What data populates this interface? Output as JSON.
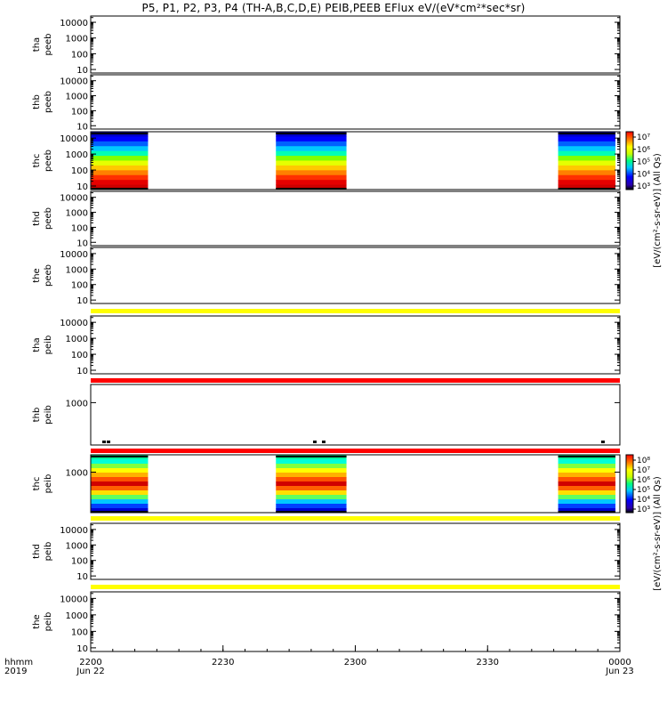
{
  "chart_data": {
    "type": "heatmap",
    "title": "P5, P1, P2, P3, P4 (TH-A,B,C,D,E) PEIB,PEEB EFlux eV/(eV*cm²*sec*sr)",
    "x_axis": {
      "range": [
        "2019-06-22T22:00",
        "2019-06-23T00:00"
      ],
      "ticks": [
        "2200",
        "2230",
        "2300",
        "2330",
        "0000"
      ],
      "date_labels": [
        "Jun 22",
        "Jun 23"
      ],
      "row_labels": [
        "hhmm",
        "2019"
      ]
    },
    "panels": [
      {
        "probe": "tha",
        "product": "peeb",
        "yticks": [
          "10",
          "100",
          "1000",
          "10000"
        ],
        "ylog": true,
        "bands": [],
        "blocks": [],
        "bottom_bar": "none"
      },
      {
        "probe": "thb",
        "product": "peeb",
        "yticks": [
          "10",
          "100",
          "1000",
          "10000"
        ],
        "ylog": true,
        "bands": [],
        "blocks": [],
        "bottom_bar": "none"
      },
      {
        "probe": "thc",
        "product": "peeb",
        "yticks": [
          "10",
          "100",
          "1000",
          "10000"
        ],
        "ylog": true,
        "colorbar": 0,
        "blocks": [
          {
            "start": "22:00",
            "end": "22:13"
          },
          {
            "start": "22:42",
            "end": "22:58"
          },
          {
            "start": "23:46",
            "end": "23:59"
          }
        ],
        "bottom_bar": "none"
      },
      {
        "probe": "thd",
        "product": "peeb",
        "yticks": [
          "10",
          "100",
          "1000",
          "10000"
        ],
        "ylog": true,
        "blocks": [],
        "bottom_bar": "none"
      },
      {
        "probe": "the",
        "product": "peeb",
        "yticks": [
          "10",
          "100",
          "1000",
          "10000"
        ],
        "ylog": true,
        "blocks": [],
        "bottom_bar": "yellow"
      },
      {
        "probe": "tha",
        "product": "peib",
        "yticks": [
          "10",
          "100",
          "1000",
          "10000"
        ],
        "ylog": true,
        "blocks": [],
        "bottom_bar": "red"
      },
      {
        "probe": "thb",
        "product": "peib",
        "yticks": [
          "1000"
        ],
        "ylog": true,
        "blocks": [],
        "bottom_bar": "red"
      },
      {
        "probe": "thc",
        "product": "peib",
        "yticks": [
          "1000"
        ],
        "ylog": true,
        "colorbar": 1,
        "blocks": [
          {
            "start": "22:00",
            "end": "22:13"
          },
          {
            "start": "22:42",
            "end": "22:58"
          },
          {
            "start": "23:46",
            "end": "23:59"
          }
        ],
        "bottom_bar": "yellow"
      },
      {
        "probe": "thd",
        "product": "peib",
        "yticks": [
          "10",
          "100",
          "1000",
          "10000"
        ],
        "ylog": true,
        "blocks": [],
        "bottom_bar": "yellow"
      },
      {
        "probe": "the",
        "product": "peib",
        "yticks": [
          "10",
          "100",
          "1000",
          "10000"
        ],
        "ylog": true,
        "blocks": [],
        "bottom_bar": "none"
      }
    ],
    "colorbars": [
      {
        "title": "[eV/(cm²-s-sr-eV)] (All Qs)",
        "labels": [
          "10³",
          "10⁴",
          "10⁵",
          "10⁶",
          "10⁷"
        ]
      },
      {
        "title": "[eV/(cm²-s-sr-eV)] (All Qs)",
        "labels": [
          "10³",
          "10⁴",
          "10⁵",
          "10⁶",
          "10⁷",
          "10⁸"
        ]
      }
    ]
  }
}
